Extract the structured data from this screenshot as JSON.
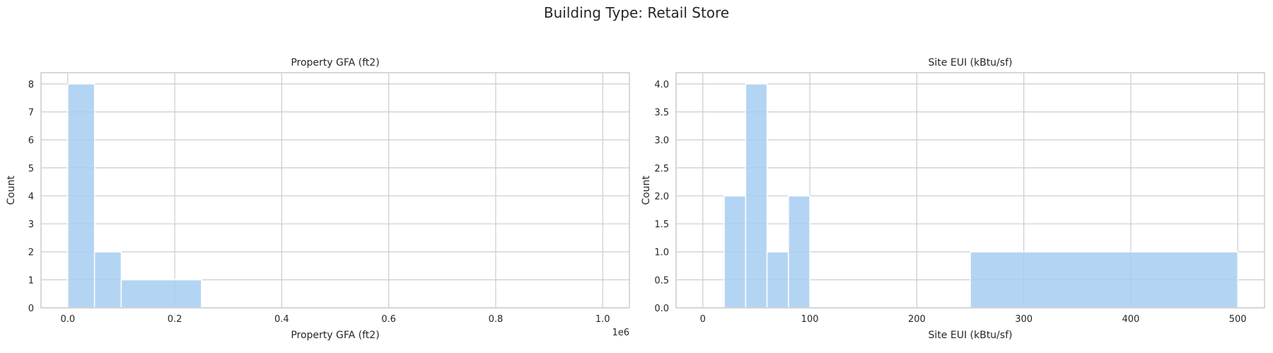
{
  "figure": {
    "suptitle": "Building Type: Retail Store"
  },
  "colors": {
    "bar": "#a7cdf2",
    "grid": "#cccccc",
    "frame": "#cccccc"
  },
  "chart_data": [
    {
      "type": "bar",
      "title": "Property GFA (ft2)",
      "xlabel": "Property GFA (ft2)",
      "ylabel": "Count",
      "offset_text": "1e6",
      "xlim": [
        -0.05,
        1.05
      ],
      "ylim": [
        0,
        8.4
      ],
      "xticks": [
        0.0,
        0.2,
        0.4,
        0.6,
        0.8,
        1.0
      ],
      "xtick_labels": [
        "0.0",
        "0.2",
        "0.4",
        "0.6",
        "0.8",
        "1.0"
      ],
      "yticks": [
        0,
        1,
        2,
        3,
        4,
        5,
        6,
        7,
        8
      ],
      "ytick_labels": [
        "0",
        "1",
        "2",
        "3",
        "4",
        "5",
        "6",
        "7",
        "8"
      ],
      "grid": true,
      "bins": [
        {
          "x0": 0.0,
          "x1": 0.05,
          "count": 8
        },
        {
          "x0": 0.05,
          "x1": 0.1,
          "count": 2
        },
        {
          "x0": 0.1,
          "x1": 0.25,
          "count": 1
        },
        {
          "x0": 0.25,
          "x1": 0.5,
          "count": 0
        },
        {
          "x0": 0.5,
          "x1": 1.0,
          "count": 0
        }
      ]
    },
    {
      "type": "bar",
      "title": "Site EUI (kBtu/sf)",
      "xlabel": "Site EUI (kBtu/sf)",
      "ylabel": "Count",
      "offset_text": "",
      "xlim": [
        -25,
        525
      ],
      "ylim": [
        0,
        4.2
      ],
      "xticks": [
        0,
        100,
        200,
        300,
        400,
        500
      ],
      "xtick_labels": [
        "0",
        "100",
        "200",
        "300",
        "400",
        "500"
      ],
      "yticks": [
        0,
        0.5,
        1.0,
        1.5,
        2.0,
        2.5,
        3.0,
        3.5,
        4.0
      ],
      "ytick_labels": [
        "0.0",
        "0.5",
        "1.0",
        "1.5",
        "2.0",
        "2.5",
        "3.0",
        "3.5",
        "4.0"
      ],
      "grid": true,
      "bins": [
        {
          "x0": 0,
          "x1": 20,
          "count": 0
        },
        {
          "x0": 20,
          "x1": 40,
          "count": 2
        },
        {
          "x0": 40,
          "x1": 60,
          "count": 4
        },
        {
          "x0": 60,
          "x1": 80,
          "count": 1
        },
        {
          "x0": 80,
          "x1": 100,
          "count": 2
        },
        {
          "x0": 100,
          "x1": 250,
          "count": 0
        },
        {
          "x0": 250,
          "x1": 500,
          "count": 1
        }
      ]
    }
  ]
}
